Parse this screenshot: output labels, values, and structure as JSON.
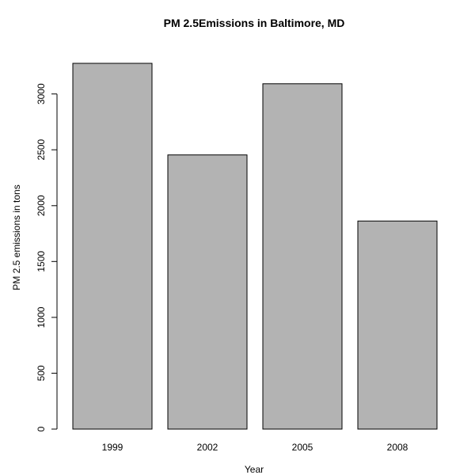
{
  "chart_data": {
    "type": "bar",
    "title": "PM 2.5Emissions in Baltimore, MD",
    "xlabel": "Year",
    "ylabel": "PM 2.5 emissions in tons",
    "categories": [
      "1999",
      "2002",
      "2005",
      "2008"
    ],
    "values": [
      3274,
      2454,
      3091,
      1862
    ],
    "ylim": [
      0,
      3274
    ],
    "yticks": [
      0,
      500,
      1000,
      1500,
      2000,
      2500,
      3000
    ],
    "ytick_labels": [
      "0",
      "500",
      "1000",
      "1500",
      "2000",
      "2500",
      "3000"
    ],
    "grid": false,
    "legend": "none",
    "bar_color": "#b3b3b3",
    "bar_edge_color": "#000000"
  }
}
